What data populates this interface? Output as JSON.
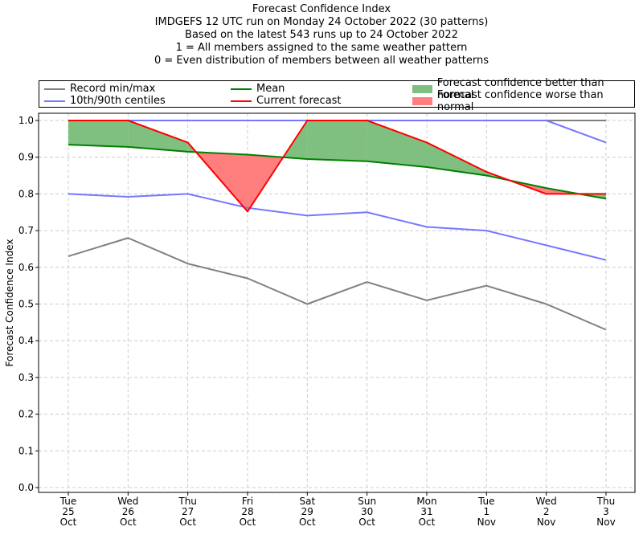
{
  "chart_data": {
    "type": "line",
    "title": "Forecast Confidence Index",
    "subtitle_lines": [
      "IMDGEFS 12 UTC run on Monday 24 October 2022 (30 patterns)",
      "Based on the latest 543 runs up to 24 October 2022",
      "1 = All members assigned to the same weather pattern",
      "0 = Even distribution of members between all weather patterns"
    ],
    "ylabel": "Forecast Confidence Index",
    "xlabel": "",
    "ylim": [
      0,
      1.0
    ],
    "yticks": [
      "0.0",
      "0.1",
      "0.2",
      "0.3",
      "0.4",
      "0.5",
      "0.6",
      "0.7",
      "0.8",
      "0.9",
      "1.0"
    ],
    "categories": [
      [
        "Tue",
        "25",
        "Oct"
      ],
      [
        "Wed",
        "26",
        "Oct"
      ],
      [
        "Thu",
        "27",
        "Oct"
      ],
      [
        "Fri",
        "28",
        "Oct"
      ],
      [
        "Sat",
        "29",
        "Oct"
      ],
      [
        "Sun",
        "30",
        "Oct"
      ],
      [
        "Mon",
        "31",
        "Oct"
      ],
      [
        "Tue",
        "1",
        "Nov"
      ],
      [
        "Wed",
        "2",
        "Nov"
      ],
      [
        "Thu",
        "3",
        "Nov"
      ]
    ],
    "grid": true,
    "legend_position": "top, above plot",
    "legend": {
      "record": "Record min/max",
      "centiles": "10th/90th centiles",
      "mean": "Mean",
      "current": "Current forecast",
      "better": "Forecast confidence better than normal",
      "worse": "Forecast confidence worse than normal"
    },
    "colors": {
      "record": "#808080",
      "centiles": "#7777ff",
      "mean": "#008000",
      "current": "#ff0000",
      "better": "#7fbf7f",
      "worse": "#ff7f7f"
    },
    "series": [
      {
        "key": "record_max",
        "values": [
          1.0,
          1.0,
          1.0,
          1.0,
          1.0,
          1.0,
          1.0,
          1.0,
          1.0,
          1.0
        ]
      },
      {
        "key": "record_min",
        "values": [
          0.63,
          0.68,
          0.61,
          0.57,
          0.5,
          0.56,
          0.51,
          0.55,
          0.5,
          0.43
        ]
      },
      {
        "key": "p90",
        "values": [
          1.0,
          1.0,
          1.0,
          1.0,
          1.0,
          1.0,
          1.0,
          1.0,
          1.0,
          0.94
        ]
      },
      {
        "key": "p10",
        "values": [
          0.8,
          0.792,
          0.8,
          0.762,
          0.741,
          0.75,
          0.71,
          0.7,
          0.66,
          0.62
        ]
      },
      {
        "key": "mean",
        "values": [
          0.934,
          0.928,
          0.915,
          0.907,
          0.895,
          0.889,
          0.873,
          0.85,
          0.816,
          0.787
        ]
      },
      {
        "key": "current",
        "values": [
          1.0,
          1.0,
          0.94,
          0.752,
          1.0,
          1.0,
          0.94,
          0.86,
          0.8,
          0.8
        ]
      }
    ]
  }
}
